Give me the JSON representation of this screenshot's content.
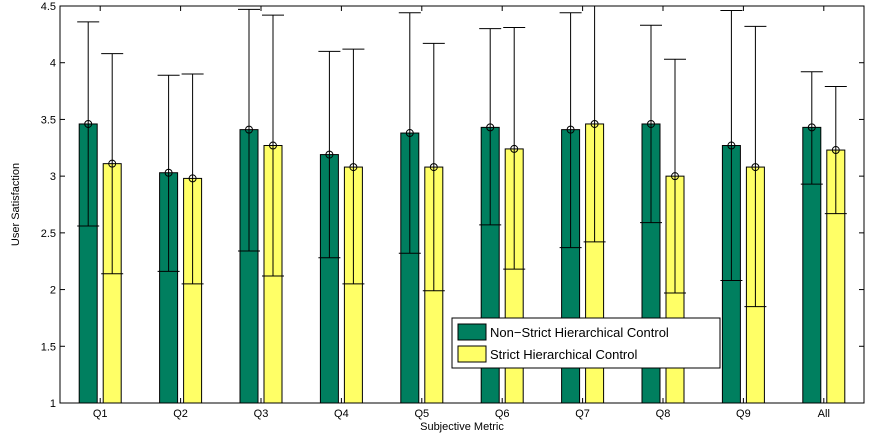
{
  "chart_data": {
    "type": "bar",
    "title": "",
    "xlabel": "Subjective Metric",
    "ylabel": "User Satisfaction",
    "ylim": [
      1,
      4.5
    ],
    "yticks": [
      "1",
      "1.5",
      "2",
      "2.5",
      "3",
      "3.5",
      "4",
      "4.5"
    ],
    "categories": [
      "Q1",
      "Q2",
      "Q3",
      "Q4",
      "Q5",
      "Q6",
      "Q7",
      "Q8",
      "Q9",
      "All"
    ],
    "grid": false,
    "legend_position": "lower-right",
    "series": [
      {
        "name": "Non−Strict Hierarchical Control",
        "color": "#007f5f",
        "values": [
          3.46,
          3.03,
          3.41,
          3.19,
          3.38,
          3.43,
          3.41,
          3.46,
          3.27,
          3.43
        ],
        "err_low": [
          2.56,
          2.16,
          2.34,
          2.28,
          2.32,
          2.57,
          2.37,
          2.59,
          2.08,
          2.93
        ],
        "err_high": [
          4.36,
          3.89,
          4.47,
          4.1,
          4.44,
          4.3,
          4.44,
          4.33,
          4.46,
          3.92
        ]
      },
      {
        "name": "Strict Hierarchical Control",
        "color": "#ffff66",
        "values": [
          3.11,
          2.98,
          3.27,
          3.08,
          3.08,
          3.24,
          3.46,
          3.0,
          3.08,
          3.23
        ],
        "err_low": [
          2.14,
          2.05,
          2.12,
          2.05,
          1.99,
          2.18,
          2.42,
          1.97,
          1.85,
          2.67
        ],
        "err_high": [
          4.08,
          3.9,
          4.42,
          4.12,
          4.17,
          4.31,
          4.5,
          4.03,
          4.32,
          3.79
        ]
      }
    ]
  }
}
